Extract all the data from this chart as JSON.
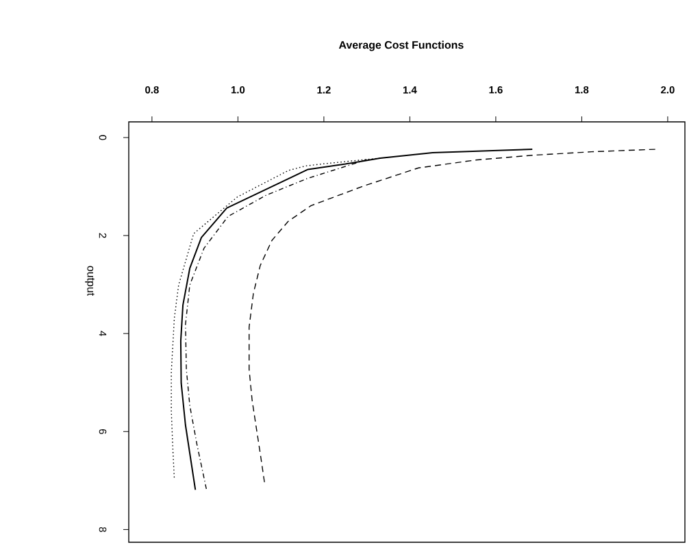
{
  "chart_data": {
    "type": "line",
    "title": "Average Cost Functions",
    "ylabel": "output",
    "xlim": [
      0.746,
      2.04
    ],
    "ylim": [
      8.26,
      -0.32
    ],
    "xticks": [
      {
        "value": 0.8,
        "label": "0.8"
      },
      {
        "value": 1.0,
        "label": "1.0"
      },
      {
        "value": 1.2,
        "label": "1.2"
      },
      {
        "value": 1.4,
        "label": "1.4"
      },
      {
        "value": 1.6,
        "label": "1.6"
      },
      {
        "value": 1.8,
        "label": "1.8"
      },
      {
        "value": 2.0,
        "label": "2.0"
      }
    ],
    "yticks": [
      0,
      2,
      4,
      6,
      8
    ],
    "series": [
      {
        "color": "#000000",
        "line_style": "solid",
        "x": [
          1.685,
          1.453,
          1.331,
          1.25,
          1.163,
          0.974,
          0.915,
          0.888,
          0.872,
          0.867,
          0.868,
          0.878,
          0.901
        ],
        "values": [
          0.24,
          0.31,
          0.42,
          0.54,
          0.65,
          1.44,
          2.04,
          2.67,
          3.42,
          4.15,
          5.01,
          5.87,
          7.19
        ]
      },
      {
        "color": "#000000",
        "line_style": "dashed",
        "x": [
          1.971,
          1.823,
          1.688,
          1.552,
          1.42,
          1.292,
          1.17,
          1.117,
          1.079,
          1.052,
          1.036,
          1.026,
          1.026,
          1.033,
          1.042,
          1.052,
          1.062
        ],
        "values": [
          0.24,
          0.29,
          0.36,
          0.46,
          0.62,
          0.99,
          1.39,
          1.71,
          2.1,
          2.61,
          3.18,
          3.87,
          4.73,
          5.36,
          5.88,
          6.45,
          7.05
        ]
      },
      {
        "color": "#000000",
        "line_style": "dotted",
        "x": [
          1.33,
          1.195,
          1.157,
          1.118,
          0.999,
          0.897,
          0.862,
          0.852,
          0.845,
          0.845,
          0.849,
          0.852
        ],
        "values": [
          0.42,
          0.54,
          0.58,
          0.67,
          1.21,
          1.96,
          3.01,
          3.69,
          4.79,
          5.58,
          6.44,
          6.96
        ]
      },
      {
        "color": "#000000",
        "line_style": "dashdot",
        "x": [
          1.3,
          1.16,
          1.065,
          0.977,
          0.921,
          0.888,
          0.878,
          0.88,
          0.888,
          0.905,
          0.927
        ],
        "values": [
          0.45,
          0.84,
          1.18,
          1.61,
          2.26,
          3.01,
          3.81,
          4.73,
          5.47,
          6.28,
          7.19
        ]
      }
    ]
  }
}
